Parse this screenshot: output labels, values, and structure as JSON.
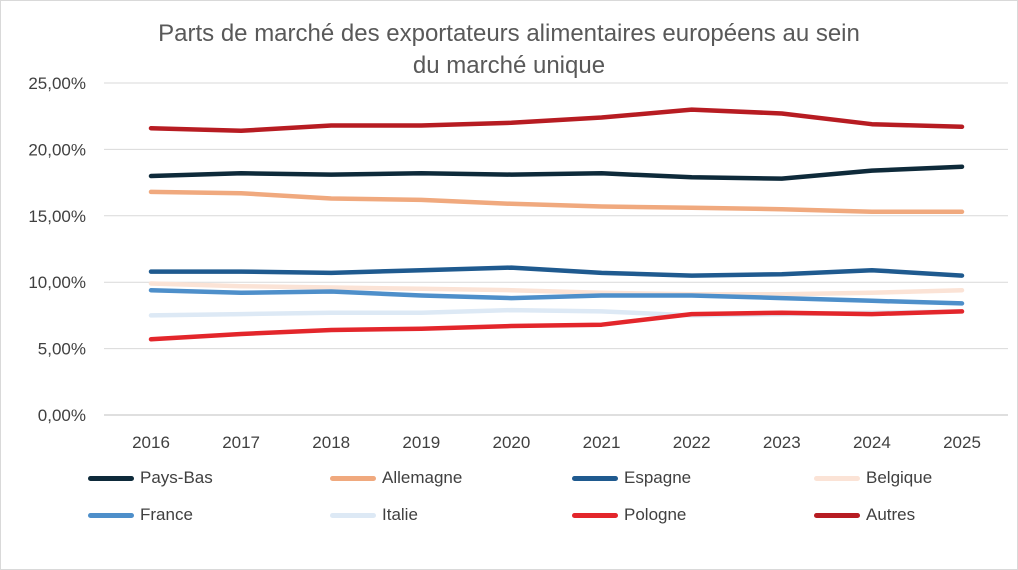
{
  "chart_data": {
    "type": "line",
    "title": "Parts de marché des exportateurs alimentaires européens au sein du marché unique",
    "title_lines": [
      "Parts de marché des exportateurs alimentaires européens au sein",
      "du marché unique"
    ],
    "xlabel": "",
    "ylabel": "",
    "categories": [
      "2016",
      "2017",
      "2018",
      "2019",
      "2020",
      "2021",
      "2022",
      "2023",
      "2024",
      "2025"
    ],
    "ylim": [
      0,
      25
    ],
    "yticks": [
      "0,00%",
      "5,00%",
      "10,00%",
      "15,00%",
      "20,00%",
      "25,00%"
    ],
    "grid": true,
    "legend_position": "bottom",
    "series": [
      {
        "name": "Pays-Bas",
        "color": "#0e2a3a",
        "values": [
          18.0,
          18.2,
          18.1,
          18.2,
          18.1,
          18.2,
          17.9,
          17.8,
          18.4,
          18.7
        ]
      },
      {
        "name": "Allemagne",
        "color": "#f0a97e",
        "values": [
          16.8,
          16.7,
          16.3,
          16.2,
          15.9,
          15.7,
          15.6,
          15.5,
          15.3,
          15.3
        ]
      },
      {
        "name": "Espagne",
        "color": "#1f5a8f",
        "values": [
          10.8,
          10.8,
          10.7,
          10.9,
          11.1,
          10.7,
          10.5,
          10.6,
          10.9,
          10.5
        ]
      },
      {
        "name": "Belgique",
        "color": "#fbe3d6",
        "values": [
          9.9,
          9.7,
          9.6,
          9.5,
          9.4,
          9.2,
          9.1,
          9.1,
          9.2,
          9.4
        ]
      },
      {
        "name": "France",
        "color": "#4e8fca",
        "values": [
          9.4,
          9.2,
          9.3,
          9.0,
          8.8,
          9.0,
          9.0,
          8.8,
          8.6,
          8.4
        ]
      },
      {
        "name": "Italie",
        "color": "#dde9f5",
        "values": [
          7.5,
          7.6,
          7.7,
          7.7,
          7.9,
          7.8,
          7.5,
          7.6,
          7.7,
          7.8
        ]
      },
      {
        "name": "Pologne",
        "color": "#e3262b",
        "values": [
          5.7,
          6.1,
          6.4,
          6.5,
          6.7,
          6.8,
          7.6,
          7.7,
          7.6,
          7.8
        ]
      },
      {
        "name": "Autres",
        "color": "#b71c22",
        "values": [
          21.6,
          21.4,
          21.8,
          21.8,
          22.0,
          22.4,
          23.0,
          22.7,
          21.9,
          21.7
        ]
      }
    ]
  }
}
